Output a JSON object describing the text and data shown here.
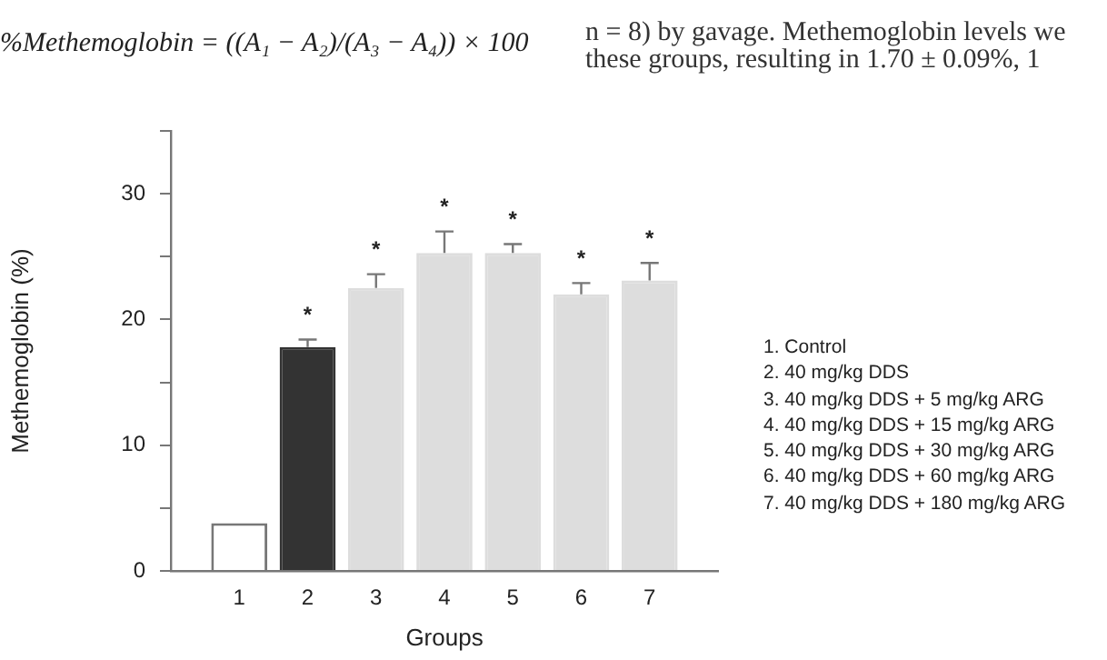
{
  "chart_data": {
    "type": "bar",
    "xlabel": "Groups",
    "ylabel": "Methemoglobin (%)",
    "categories": [
      "1",
      "2",
      "3",
      "4",
      "5",
      "6",
      "7"
    ],
    "values": [
      3.8,
      17.8,
      22.5,
      25.3,
      25.3,
      22.0,
      23.1
    ],
    "colors": [
      "#ffffff",
      "#333333",
      "#dddddd",
      "#dddddd",
      "#dddddd",
      "#dddddd",
      "#dddddd"
    ],
    "errors": [
      null,
      [
        17.8,
        18.4
      ],
      [
        22.5,
        23.6
      ],
      [
        25.3,
        27.0
      ],
      [
        25.3,
        26.0
      ],
      [
        22.0,
        22.9
      ],
      [
        23.1,
        24.5
      ]
    ],
    "value_labels": [
      null,
      "*",
      "*",
      "*",
      "*",
      "*",
      "*"
    ],
    "ylim": [
      0,
      35
    ],
    "yticks": [
      0,
      {
        "value": 5,
        "label": null
      },
      10,
      {
        "value": 15,
        "label": null
      },
      20,
      {
        "value": 25,
        "label": null
      },
      30,
      {
        "value": 35,
        "label": null
      }
    ],
    "grid": false,
    "legend": false,
    "annotations": [
      "1. Control",
      "2. 40 mg/kg DDS",
      "3. 40 mg/kg DDS + 5 mg/kg ARG",
      "4. 40 mg/kg DDS + 15 mg/kg ARG",
      "5. 40 mg/kg DDS + 30 mg/kg ARG",
      "6. 40 mg/kg DDS + 60 mg/kg ARG",
      "7. 40 mg/kg DDS + 180 mg/kg ARG",
      "%Methemoglobin = ((A₁ − A₂)/(A₃ − A₄)) × 100",
      "n = 8) by gavage. Methemoglobin levels we",
      "these groups, resulting in 1.70 ± 0.09%, 1"
    ]
  }
}
